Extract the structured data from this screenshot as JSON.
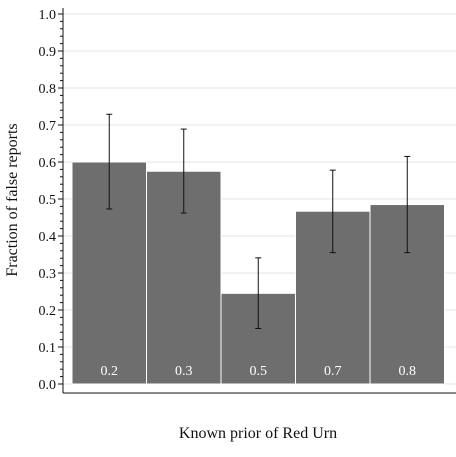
{
  "chart_data": {
    "type": "bar",
    "title": "",
    "xlabel": "Known prior of Red Urn",
    "ylabel": "Fraction of false reports",
    "ylim": [
      0,
      1.0
    ],
    "yticks": [
      "0.0",
      "0.1",
      "0.2",
      "0.3",
      "0.4",
      "0.5",
      "0.6",
      "0.7",
      "0.8",
      "0.9",
      "1.0"
    ],
    "categories": [
      "0.2",
      "0.3",
      "0.5",
      "0.7",
      "0.8"
    ],
    "values": [
      0.6,
      0.575,
      0.245,
      0.467,
      0.485
    ],
    "error_low": [
      0.473,
      0.462,
      0.15,
      0.355,
      0.355
    ],
    "error_high": [
      0.729,
      0.689,
      0.341,
      0.578,
      0.615
    ],
    "grid": true,
    "legend": "none",
    "colors": {
      "bar": "#6e6e6e",
      "bar_edge": "#ffffff",
      "error": "#111111",
      "grid": "#e6e6e6"
    }
  }
}
